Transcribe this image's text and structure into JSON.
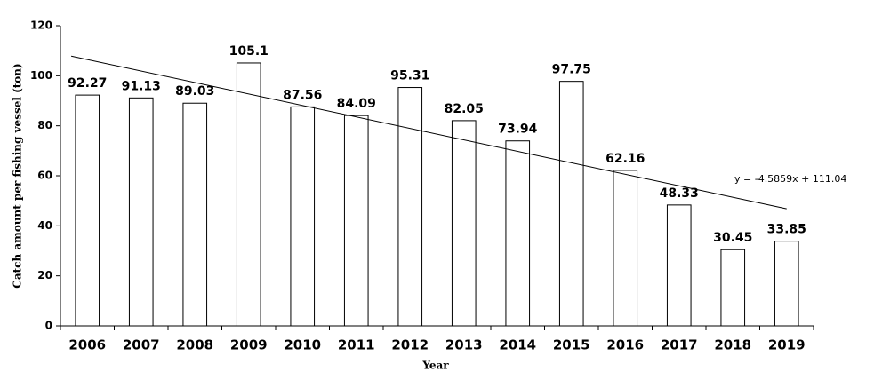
{
  "chart_data": {
    "type": "bar",
    "x_label": "Year",
    "y_label": "Catch amount per fishing vessel (ton)",
    "categories": [
      "2006",
      "2007",
      "2008",
      "2009",
      "2010",
      "2011",
      "2012",
      "2013",
      "2014",
      "2015",
      "2016",
      "2017",
      "2018",
      "2019"
    ],
    "values": [
      92.27,
      91.13,
      89.03,
      105.1,
      87.56,
      84.09,
      95.31,
      82.05,
      73.94,
      97.75,
      62.16,
      48.33,
      30.45,
      33.85
    ],
    "color": "#ffffff",
    "ylim": [
      0,
      120
    ],
    "yticks": [
      0,
      20,
      40,
      60,
      80,
      100,
      120
    ],
    "trendline": {
      "slope": -4.5859,
      "intercept": 111.04,
      "label": "y = -4.5859x + 111.04"
    }
  }
}
